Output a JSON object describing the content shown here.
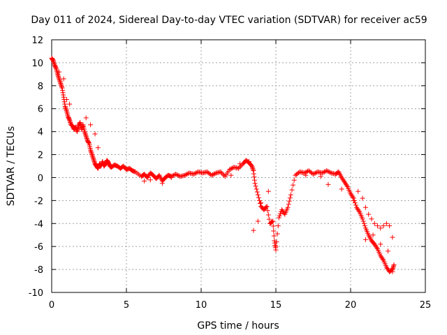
{
  "chart_data": {
    "type": "scatter",
    "title": "Day 011 of 2024, Sidereal Day-to-day VTEC variation (SDTVAR) for receiver ac59",
    "xlabel": "GPS time / hours",
    "ylabel": "SDTVAR / TECUs",
    "xlim": [
      0,
      25
    ],
    "ylim": [
      -10,
      12
    ],
    "xticks": [
      0,
      5,
      10,
      15,
      20,
      25
    ],
    "yticks": [
      -10,
      -8,
      -6,
      -4,
      -2,
      0,
      2,
      4,
      6,
      8,
      10,
      12
    ],
    "grid": true,
    "marker": "+",
    "color": "#ff0000",
    "series": [
      {
        "name": "SDTVAR",
        "x": [
          0.0,
          0.1,
          0.2,
          0.3,
          0.4,
          0.5,
          0.6,
          0.7,
          0.8,
          0.9,
          1.0,
          1.1,
          1.2,
          1.3,
          1.4,
          1.5,
          1.6,
          1.7,
          1.8,
          1.9,
          2.0,
          2.1,
          2.2,
          2.3,
          2.4,
          2.5,
          2.6,
          2.7,
          2.8,
          2.9,
          3.0,
          3.1,
          3.2,
          3.3,
          3.4,
          3.5,
          3.6,
          3.7,
          3.8,
          3.9,
          4.0,
          4.2,
          4.4,
          4.6,
          4.8,
          5.0,
          5.2,
          5.4,
          5.6,
          6.0,
          6.2,
          6.4,
          6.6,
          6.8,
          7.0,
          7.2,
          7.4,
          7.6,
          7.8,
          8.0,
          8.3,
          8.6,
          8.9,
          9.2,
          9.5,
          9.8,
          10.1,
          10.4,
          10.7,
          11.0,
          11.3,
          11.6,
          11.9,
          12.2,
          12.5,
          12.8,
          13.0,
          13.2,
          13.4,
          13.5,
          13.6,
          13.8,
          14.0,
          14.2,
          14.4,
          14.6,
          14.8,
          14.9,
          15.0,
          15.2,
          15.4,
          15.6,
          15.8,
          16.0,
          16.3,
          16.6,
          16.9,
          17.2,
          17.5,
          17.8,
          18.1,
          18.4,
          18.7,
          19.0,
          19.2,
          19.4,
          19.6,
          19.8,
          20.0,
          20.2,
          20.4,
          20.6,
          20.8,
          21.0,
          21.2,
          21.4,
          21.6,
          21.8,
          22.0,
          22.2,
          22.4,
          22.6,
          22.8,
          22.9
        ],
        "y": [
          10.4,
          10.2,
          9.8,
          9.5,
          9.0,
          8.6,
          8.2,
          7.8,
          7.0,
          6.2,
          5.8,
          5.3,
          5.0,
          4.6,
          4.5,
          4.2,
          4.4,
          4.0,
          4.5,
          4.8,
          4.2,
          4.6,
          4.0,
          3.6,
          3.2,
          3.0,
          2.4,
          2.0,
          1.6,
          1.2,
          1.0,
          0.8,
          1.2,
          1.0,
          1.4,
          1.0,
          1.2,
          1.5,
          1.3,
          1.0,
          0.9,
          1.1,
          1.0,
          0.8,
          1.0,
          0.7,
          0.8,
          0.6,
          0.5,
          0.1,
          0.3,
          0.0,
          0.4,
          0.2,
          -0.1,
          0.2,
          -0.3,
          0.0,
          0.2,
          0.1,
          0.3,
          0.1,
          0.2,
          0.4,
          0.3,
          0.5,
          0.4,
          0.5,
          0.2,
          0.4,
          0.5,
          0.1,
          0.7,
          0.9,
          0.8,
          1.2,
          1.5,
          1.3,
          1.0,
          0.6,
          -0.5,
          -1.5,
          -2.5,
          -2.8,
          -2.5,
          -4.0,
          -3.8,
          -5.5,
          -6.3,
          -3.5,
          -2.8,
          -3.2,
          -2.6,
          -1.5,
          0.2,
          0.5,
          0.4,
          0.6,
          0.3,
          0.5,
          0.4,
          0.6,
          0.4,
          0.3,
          0.5,
          0.0,
          -0.4,
          -0.8,
          -1.4,
          -1.8,
          -2.6,
          -3.0,
          -3.6,
          -4.4,
          -5.0,
          -5.5,
          -5.8,
          -6.2,
          -6.8,
          -7.2,
          -7.8,
          -8.2,
          -8.0,
          -7.6
        ],
        "extra_points": [
          {
            "x": 20.5,
            "y": -1.2
          },
          {
            "x": 20.8,
            "y": -1.8
          },
          {
            "x": 21.0,
            "y": -2.6
          },
          {
            "x": 21.2,
            "y": -3.2
          },
          {
            "x": 21.4,
            "y": -3.6
          },
          {
            "x": 21.6,
            "y": -4.0
          },
          {
            "x": 21.8,
            "y": -4.2
          },
          {
            "x": 22.0,
            "y": -4.4
          },
          {
            "x": 22.2,
            "y": -4.2
          },
          {
            "x": 22.4,
            "y": -4.0
          },
          {
            "x": 22.6,
            "y": -4.2
          },
          {
            "x": 22.8,
            "y": -5.2
          },
          {
            "x": 21.0,
            "y": -5.4
          },
          {
            "x": 21.5,
            "y": -5.0
          },
          {
            "x": 22.0,
            "y": -5.8
          },
          {
            "x": 22.5,
            "y": -6.4
          },
          {
            "x": 22.8,
            "y": -8.2
          },
          {
            "x": 0.5,
            "y": 9.2
          },
          {
            "x": 0.8,
            "y": 8.6
          },
          {
            "x": 1.0,
            "y": 6.8
          },
          {
            "x": 1.2,
            "y": 6.4
          },
          {
            "x": 2.3,
            "y": 5.2
          },
          {
            "x": 2.6,
            "y": 4.6
          },
          {
            "x": 2.9,
            "y": 3.8
          },
          {
            "x": 3.1,
            "y": 2.6
          },
          {
            "x": 13.5,
            "y": -4.6
          },
          {
            "x": 13.8,
            "y": -3.8
          },
          {
            "x": 14.0,
            "y": -2.2
          },
          {
            "x": 14.5,
            "y": -1.2
          },
          {
            "x": 15.0,
            "y": -6.0
          },
          {
            "x": 12.0,
            "y": 0.2
          },
          {
            "x": 12.6,
            "y": 1.2
          },
          {
            "x": 13.2,
            "y": 1.4
          },
          {
            "x": 6.2,
            "y": -0.3
          },
          {
            "x": 6.6,
            "y": -0.2
          },
          {
            "x": 7.4,
            "y": -0.5
          },
          {
            "x": 8.0,
            "y": 0.0
          },
          {
            "x": 17.0,
            "y": 0.2
          },
          {
            "x": 18.0,
            "y": 0.1
          },
          {
            "x": 18.5,
            "y": -0.6
          },
          {
            "x": 19.4,
            "y": -1.0
          },
          {
            "x": 20.2,
            "y": -2.0
          }
        ]
      }
    ]
  }
}
